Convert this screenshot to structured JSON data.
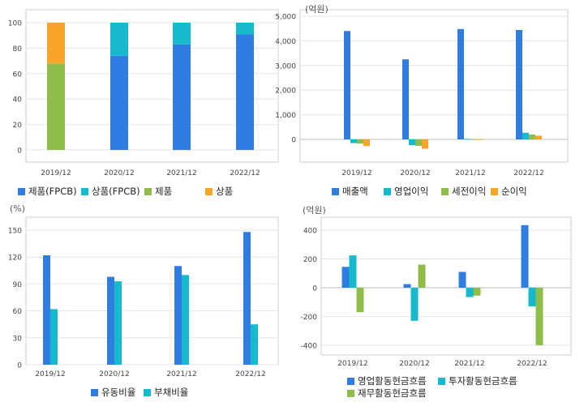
{
  "chart_data": [
    {
      "type": "bar",
      "stacked": true,
      "unit": "",
      "categories": [
        "2019/12",
        "2020/12",
        "2021/12",
        "2022/12"
      ],
      "ylim": [
        0,
        100
      ],
      "yticks": [
        0,
        20,
        40,
        60,
        80,
        100
      ],
      "grid": true,
      "legend_position": "bottom",
      "series": [
        {
          "name": "제품(FPCB)",
          "color": "#2f7de1",
          "values": [
            0,
            74,
            83,
            91
          ]
        },
        {
          "name": "상품(FPCB)",
          "color": "#17b9cc",
          "values": [
            0,
            26,
            17,
            9
          ]
        },
        {
          "name": "제품",
          "color": "#8fbd4a",
          "values": [
            68,
            0,
            0,
            0
          ]
        },
        {
          "name": "상품",
          "color": "#f8a52a",
          "values": [
            32,
            0,
            0,
            0
          ]
        }
      ]
    },
    {
      "type": "bar",
      "stacked": false,
      "unit": "(억원)",
      "categories": [
        "2019/12",
        "2020/12",
        "2021/12",
        "2022/12"
      ],
      "ylim": [
        -500,
        5000
      ],
      "yticks": [
        0,
        1000,
        2000,
        3000,
        4000,
        5000
      ],
      "ytick_labels": [
        "0",
        "1,000",
        "2,000",
        "3,000",
        "4,000",
        "5,000"
      ],
      "grid": true,
      "legend_position": "bottom",
      "series": [
        {
          "name": "매출액",
          "color": "#2f7de1",
          "values": [
            4400,
            3250,
            4480,
            4440
          ]
        },
        {
          "name": "영업이익",
          "color": "#17b9cc",
          "values": [
            -150,
            -230,
            20,
            270
          ]
        },
        {
          "name": "세전이익",
          "color": "#8fbd4a",
          "values": [
            -170,
            -260,
            10,
            200
          ]
        },
        {
          "name": "순이익",
          "color": "#f8a52a",
          "values": [
            -270,
            -380,
            10,
            150
          ]
        }
      ]
    },
    {
      "type": "bar",
      "stacked": false,
      "unit": "(%)",
      "categories": [
        "2019/12",
        "2020/12",
        "2021/12",
        "2022/12"
      ],
      "ylim": [
        0,
        150
      ],
      "yticks": [
        0,
        30,
        60,
        90,
        120,
        150
      ],
      "grid": true,
      "legend_position": "bottom",
      "series": [
        {
          "name": "유동비율",
          "color": "#2f7de1",
          "values": [
            122,
            98,
            110,
            148
          ]
        },
        {
          "name": "부채비율",
          "color": "#17b9cc",
          "values": [
            62,
            93,
            100,
            45
          ]
        }
      ]
    },
    {
      "type": "bar",
      "stacked": false,
      "unit": "(억원)",
      "categories": [
        "2019/12",
        "2020/12",
        "2021/12",
        "2022/12"
      ],
      "ylim": [
        -450,
        450
      ],
      "yticks": [
        -400,
        -200,
        0,
        200,
        400
      ],
      "grid": true,
      "legend_position": "bottom",
      "series": [
        {
          "name": "영업활동현금흐름",
          "color": "#2f7de1",
          "values": [
            145,
            25,
            110,
            435
          ]
        },
        {
          "name": "투자활동현금흐름",
          "color": "#17b9cc",
          "values": [
            225,
            -230,
            -65,
            -130
          ]
        },
        {
          "name": "재무활동현금흐름",
          "color": "#8fbd4a",
          "values": [
            -170,
            160,
            -55,
            -400
          ]
        }
      ]
    }
  ]
}
